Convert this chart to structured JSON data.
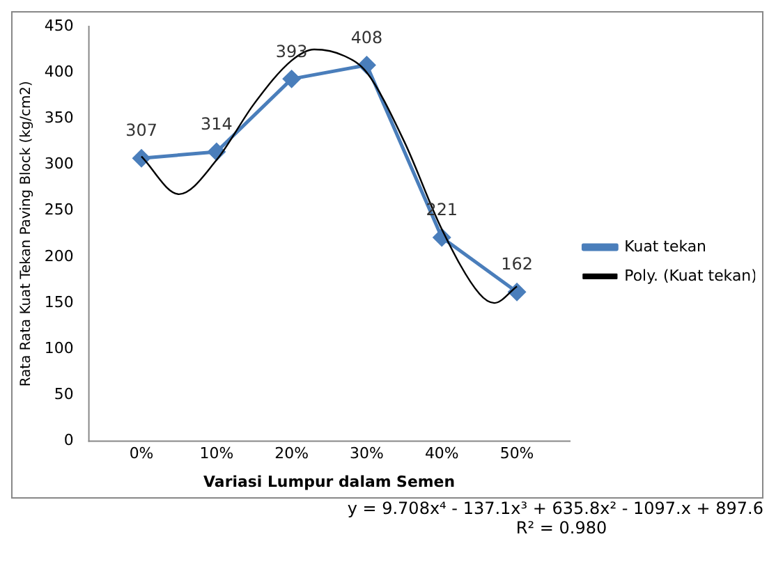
{
  "chart_data": {
    "type": "line",
    "xlabel": "Variasi Lumpur dalam Semen",
    "ylabel": "Rata Rata Kuat Tekan Paving Block (kg/cm2)",
    "x": [
      0,
      10,
      20,
      30,
      40,
      50
    ],
    "xlim": [
      -7,
      57
    ],
    "xticks": [
      {
        "value": 0,
        "label": "0%"
      },
      {
        "value": 10,
        "label": "10%"
      },
      {
        "value": 20,
        "label": "20%"
      },
      {
        "value": 30,
        "label": "30%"
      },
      {
        "value": 40,
        "label": "40%"
      },
      {
        "value": 50,
        "label": "50%"
      }
    ],
    "ylim": [
      0,
      450
    ],
    "yticks": [
      0,
      50,
      100,
      150,
      200,
      250,
      300,
      350,
      400,
      450
    ],
    "series": [
      {
        "name": "Kuat tekan",
        "color": "#4a7ebb",
        "values": [
          307,
          314,
          393,
          408,
          221,
          162
        ],
        "marker": "diamond",
        "value_labels": [
          "307",
          "314",
          "393",
          "408",
          "221",
          "162"
        ]
      },
      {
        "name": "Poly. (Kuat tekan)",
        "type": "line",
        "color": "#000000",
        "marker": "none",
        "x": [
          0,
          5,
          10,
          15,
          20,
          23,
          27,
          30,
          35,
          40,
          45,
          47,
          50
        ],
        "values": [
          309,
          268,
          305,
          366,
          413,
          425,
          418,
          400,
          325,
          230,
          160,
          150,
          168
        ]
      }
    ],
    "legend": "right",
    "grid": false,
    "annotations": [
      "y = 9.708x⁴ - 137.1x³ + 635.8x² - 1097.x + 897.6",
      "R² = 0.980"
    ]
  }
}
